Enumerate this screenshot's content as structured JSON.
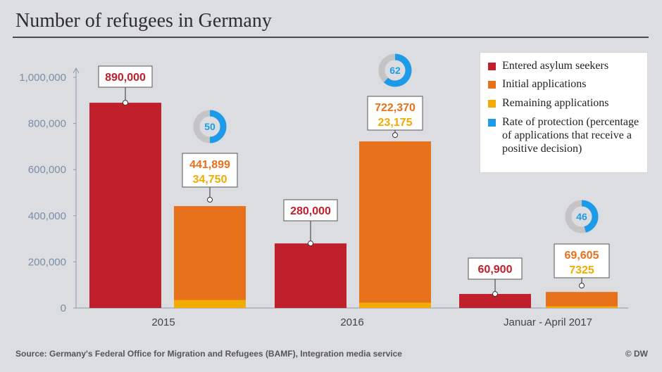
{
  "title": "Number of refugees in Germany",
  "source": "Source: Germany's Federal Office for Migration and Refugees (BAMF), Integration media service",
  "credit": "© DW",
  "legend": [
    {
      "label": "Entered asylum seekers",
      "color": "#c0202c"
    },
    {
      "label": "Initial applications",
      "color": "#e8711c"
    },
    {
      "label": "Remaining applications",
      "color": "#f2ab00"
    },
    {
      "label": "Rate of protection (percentage of applications that receive a positive decision)",
      "color": "#1e9be8"
    }
  ],
  "chart_data": {
    "type": "bar",
    "categories": [
      "2015",
      "2016",
      "Januar -  April 2017"
    ],
    "ylim": [
      0,
      1000000
    ],
    "yticks": [
      0,
      200000,
      400000,
      600000,
      800000,
      1000000
    ],
    "ytick_labels": [
      "0",
      "200,000",
      "400,000",
      "600,000",
      "800,000",
      "1,000,000"
    ],
    "grid": false,
    "legend_position": "top-right",
    "series": [
      {
        "name": "Entered asylum seekers",
        "values": [
          890000,
          280000,
          60900
        ],
        "labels": [
          "890,000",
          "280,000",
          "60,900"
        ]
      },
      {
        "name": "Initial applications",
        "values": [
          441899,
          722370,
          69605
        ],
        "labels": [
          "441,899",
          "722,370",
          "69,605"
        ]
      },
      {
        "name": "Remaining applications",
        "values": [
          34750,
          23175,
          7325
        ],
        "labels": [
          "34,750",
          "23,175",
          "7325"
        ]
      },
      {
        "name": "Rate of protection",
        "values": [
          50,
          62,
          46
        ],
        "labels": [
          "50",
          "62",
          "46"
        ]
      }
    ],
    "colors": {
      "asylum": "#c0202c",
      "initial": "#e8711c",
      "remaining": "#f2ab00",
      "rate": "#1e9be8",
      "ring_track": "#c4c4c4"
    }
  }
}
